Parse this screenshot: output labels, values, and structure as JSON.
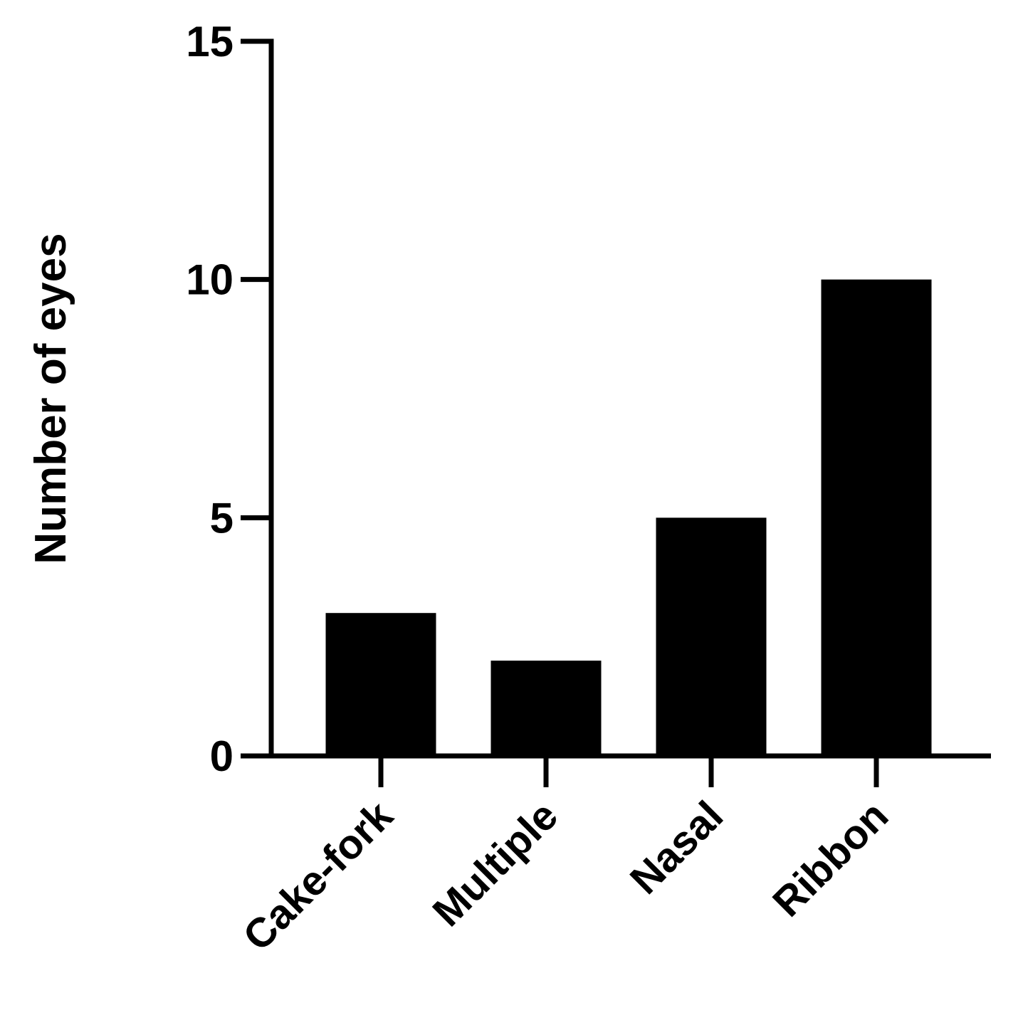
{
  "chart_data": {
    "type": "bar",
    "y_label": "Number of eyes",
    "categories": [
      "Cake-fork",
      "Multiple",
      "Nasal",
      "Ribbon"
    ],
    "values": [
      3,
      2,
      5,
      10
    ],
    "color": "#000000",
    "ylim": [
      0,
      15
    ],
    "yticks": [
      0,
      5,
      10,
      15
    ],
    "grid": false
  }
}
